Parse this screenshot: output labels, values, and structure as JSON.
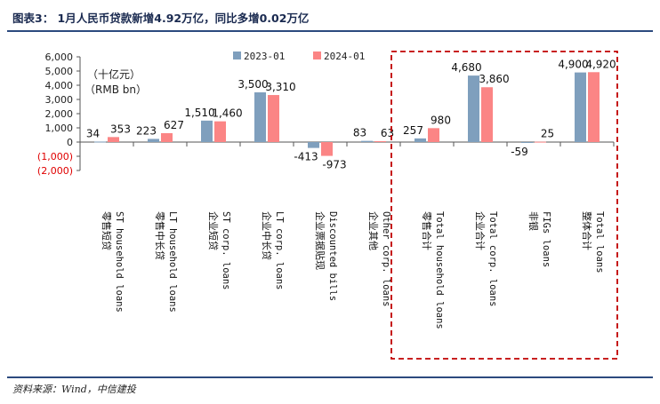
{
  "header": {
    "title": "图表3： 1月人民币贷款新增4.92万亿，同比多增0.02万亿"
  },
  "footer": {
    "source": "资料来源：Wind，中信建投"
  },
  "chart_data": {
    "type": "bar",
    "unit_label_cn": "（十亿元）",
    "unit_label_en": "（RMB bn）",
    "ylim": [
      -2000,
      6000
    ],
    "yticks": [
      {
        "value": 6000,
        "label": "6,000"
      },
      {
        "value": 5000,
        "label": "5,000"
      },
      {
        "value": 4000,
        "label": "4,000"
      },
      {
        "value": 3000,
        "label": "3,000"
      },
      {
        "value": 2000,
        "label": "2,000"
      },
      {
        "value": 1000,
        "label": "1,000"
      },
      {
        "value": 0,
        "label": "0"
      },
      {
        "value": -1000,
        "label": "(1,000)"
      },
      {
        "value": -2000,
        "label": "(2,000)"
      }
    ],
    "grid": false,
    "legend_position": "top-center",
    "categories": [
      {
        "cn": "零售短贷",
        "en": "ST household loans"
      },
      {
        "cn": "零售中长贷",
        "en": "LT household loans"
      },
      {
        "cn": "企业短贷",
        "en": "ST corp. loans"
      },
      {
        "cn": "企业中长贷",
        "en": "LT corp. loans"
      },
      {
        "cn": "企业票据贴现",
        "en": "Discounted bills"
      },
      {
        "cn": "企业其他",
        "en": "Other corp. loans"
      },
      {
        "cn": "零售合计",
        "en": "Total household loans"
      },
      {
        "cn": "企业合计",
        "en": "Total corp. loans"
      },
      {
        "cn": "非银",
        "en": "FIGs loans"
      },
      {
        "cn": "整体合计",
        "en": "Total loans"
      }
    ],
    "series": [
      {
        "name": "2023-01",
        "color": "#7f9fbd",
        "values": [
          34,
          223,
          1510,
          3500,
          -413,
          83,
          257,
          4680,
          -59,
          4900
        ],
        "labels": [
          "34",
          "223",
          "1,510",
          "3,500",
          "-413",
          "83",
          "257",
          "4,680",
          "-59",
          "4,900"
        ]
      },
      {
        "name": "2024-01",
        "color": "#fb8585",
        "values": [
          353,
          627,
          1460,
          3310,
          -973,
          63,
          980,
          3860,
          25,
          4920
        ],
        "labels": [
          "353",
          "627",
          "1,460",
          "3,310",
          "-973",
          "63",
          "980",
          "3,860",
          "25",
          "4,920"
        ]
      }
    ],
    "highlight_box": {
      "from_category": 6,
      "to_category": 9,
      "color": "#c00000",
      "style": "dashed"
    },
    "negative_tick_color": "#e00000"
  }
}
